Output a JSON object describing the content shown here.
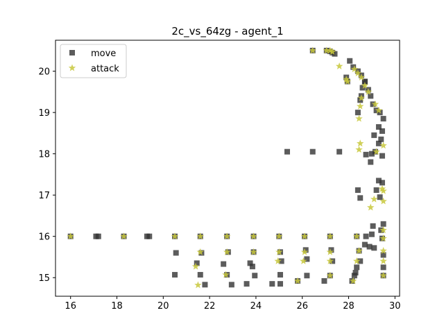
{
  "chart_data": {
    "type": "scatter",
    "title": "2c_vs_64zg - agent_1",
    "xlabel": "",
    "ylabel": "",
    "xlim": [
      15.35,
      30.2
    ],
    "ylim": [
      14.55,
      20.75
    ],
    "xticks": [
      16,
      18,
      20,
      22,
      24,
      26,
      28,
      30
    ],
    "yticks": [
      15,
      16,
      17,
      18,
      19,
      20
    ],
    "xtick_labels": [
      "16",
      "18",
      "20",
      "22",
      "24",
      "26",
      "28",
      "30"
    ],
    "ytick_labels": [
      "15",
      "16",
      "17",
      "18",
      "19",
      "20"
    ],
    "grid": false,
    "legend_position": "upper-left",
    "series": [
      {
        "name": "move",
        "marker": "square",
        "color": "#333333",
        "points": [
          [
            16.0,
            16.0
          ],
          [
            17.1,
            16.0
          ],
          [
            17.2,
            16.0
          ],
          [
            18.3,
            16.0
          ],
          [
            19.3,
            16.0
          ],
          [
            19.4,
            16.0
          ],
          [
            20.5,
            16.0
          ],
          [
            20.55,
            15.6
          ],
          [
            20.5,
            15.07
          ],
          [
            21.6,
            16.0
          ],
          [
            21.65,
            15.6
          ],
          [
            21.45,
            15.35
          ],
          [
            21.6,
            15.07
          ],
          [
            21.8,
            14.83
          ],
          [
            22.75,
            16.0
          ],
          [
            22.8,
            15.62
          ],
          [
            22.6,
            15.33
          ],
          [
            22.75,
            15.07
          ],
          [
            22.95,
            14.83
          ],
          [
            23.9,
            16.0
          ],
          [
            23.9,
            15.62
          ],
          [
            23.75,
            15.35
          ],
          [
            23.85,
            15.27
          ],
          [
            23.95,
            15.05
          ],
          [
            23.6,
            14.85
          ],
          [
            25.0,
            16.0
          ],
          [
            25.05,
            15.62
          ],
          [
            25.1,
            15.4
          ],
          [
            25.05,
            15.07
          ],
          [
            24.7,
            14.85
          ],
          [
            25.05,
            14.85
          ],
          [
            26.1,
            16.0
          ],
          [
            26.15,
            15.67
          ],
          [
            26.2,
            15.45
          ],
          [
            26.2,
            15.05
          ],
          [
            25.8,
            14.92
          ],
          [
            27.2,
            16.0
          ],
          [
            27.25,
            15.67
          ],
          [
            27.3,
            15.4
          ],
          [
            27.2,
            15.05
          ],
          [
            26.95,
            14.92
          ],
          [
            28.35,
            16.0
          ],
          [
            28.45,
            15.65
          ],
          [
            28.5,
            15.4
          ],
          [
            28.35,
            15.25
          ],
          [
            28.15,
            14.92
          ],
          [
            28.25,
            15.05
          ],
          [
            28.4,
            17.12
          ],
          [
            28.5,
            16.93
          ],
          [
            28.3,
            15.12
          ],
          [
            28.7,
            15.8
          ],
          [
            28.75,
            16.0
          ],
          [
            28.9,
            15.75
          ],
          [
            29.0,
            16.05
          ],
          [
            29.05,
            16.25
          ],
          [
            29.1,
            15.72
          ],
          [
            29.2,
            17.12
          ],
          [
            29.3,
            17.35
          ],
          [
            29.35,
            16.95
          ],
          [
            29.4,
            16.15
          ],
          [
            29.45,
            15.95
          ],
          [
            29.5,
            16.3
          ],
          [
            29.45,
            17.3
          ],
          [
            29.5,
            15.55
          ],
          [
            29.5,
            15.25
          ],
          [
            29.5,
            15.05
          ],
          [
            28.95,
            17.8
          ],
          [
            28.75,
            17.98
          ],
          [
            29.0,
            18.0
          ],
          [
            29.15,
            18.05
          ],
          [
            29.3,
            18.25
          ],
          [
            29.4,
            18.35
          ],
          [
            29.45,
            18.55
          ],
          [
            29.3,
            18.65
          ],
          [
            29.1,
            18.45
          ],
          [
            29.5,
            18.85
          ],
          [
            29.45,
            17.95
          ],
          [
            28.4,
            19.0
          ],
          [
            28.5,
            19.3
          ],
          [
            28.55,
            19.4
          ],
          [
            28.6,
            19.6
          ],
          [
            28.7,
            19.75
          ],
          [
            28.85,
            19.55
          ],
          [
            28.95,
            19.4
          ],
          [
            29.05,
            19.2
          ],
          [
            29.2,
            19.05
          ],
          [
            29.35,
            19.0
          ],
          [
            28.05,
            20.25
          ],
          [
            28.2,
            20.1
          ],
          [
            28.4,
            20.0
          ],
          [
            28.55,
            19.9
          ],
          [
            28.7,
            19.75
          ],
          [
            27.9,
            19.85
          ],
          [
            27.95,
            19.75
          ],
          [
            27.05,
            20.5
          ],
          [
            27.2,
            20.48
          ],
          [
            27.3,
            20.45
          ],
          [
            27.4,
            20.42
          ],
          [
            26.45,
            20.5
          ],
          [
            25.35,
            18.05
          ],
          [
            26.45,
            18.05
          ],
          [
            27.6,
            18.05
          ]
        ]
      },
      {
        "name": "attack",
        "marker": "star",
        "color": "#c8c83c",
        "points": [
          [
            16.0,
            16.0
          ],
          [
            18.3,
            16.0
          ],
          [
            20.5,
            16.0
          ],
          [
            21.6,
            16.0
          ],
          [
            21.6,
            15.62
          ],
          [
            21.4,
            15.27
          ],
          [
            21.5,
            14.82
          ],
          [
            22.75,
            16.0
          ],
          [
            22.75,
            15.62
          ],
          [
            22.7,
            15.07
          ],
          [
            23.9,
            16.0
          ],
          [
            23.9,
            15.62
          ],
          [
            25.0,
            16.0
          ],
          [
            25.0,
            15.62
          ],
          [
            24.95,
            15.4
          ],
          [
            26.1,
            16.0
          ],
          [
            26.1,
            15.62
          ],
          [
            26.05,
            15.4
          ],
          [
            25.8,
            14.92
          ],
          [
            27.2,
            16.0
          ],
          [
            27.2,
            15.62
          ],
          [
            27.2,
            15.4
          ],
          [
            27.2,
            15.05
          ],
          [
            28.35,
            16.0
          ],
          [
            28.45,
            15.65
          ],
          [
            28.35,
            15.4
          ],
          [
            28.2,
            14.92
          ],
          [
            28.95,
            16.7
          ],
          [
            29.1,
            16.9
          ],
          [
            29.45,
            17.15
          ],
          [
            29.5,
            17.1
          ],
          [
            29.5,
            16.85
          ],
          [
            29.5,
            16.15
          ],
          [
            29.5,
            15.95
          ],
          [
            29.5,
            15.65
          ],
          [
            29.5,
            15.4
          ],
          [
            29.5,
            15.05
          ],
          [
            28.45,
            18.1
          ],
          [
            28.5,
            18.25
          ],
          [
            29.5,
            18.2
          ],
          [
            29.2,
            18.05
          ],
          [
            28.45,
            18.85
          ],
          [
            28.5,
            19.15
          ],
          [
            28.55,
            19.35
          ],
          [
            29.15,
            19.2
          ],
          [
            29.3,
            19.05
          ],
          [
            28.25,
            20.05
          ],
          [
            28.4,
            19.95
          ],
          [
            28.55,
            19.85
          ],
          [
            28.7,
            19.65
          ],
          [
            28.85,
            19.5
          ],
          [
            27.9,
            19.8
          ],
          [
            27.95,
            19.75
          ],
          [
            27.6,
            20.12
          ],
          [
            27.05,
            20.5
          ],
          [
            27.2,
            20.5
          ],
          [
            27.3,
            20.47
          ],
          [
            26.45,
            20.5
          ]
        ]
      }
    ]
  }
}
